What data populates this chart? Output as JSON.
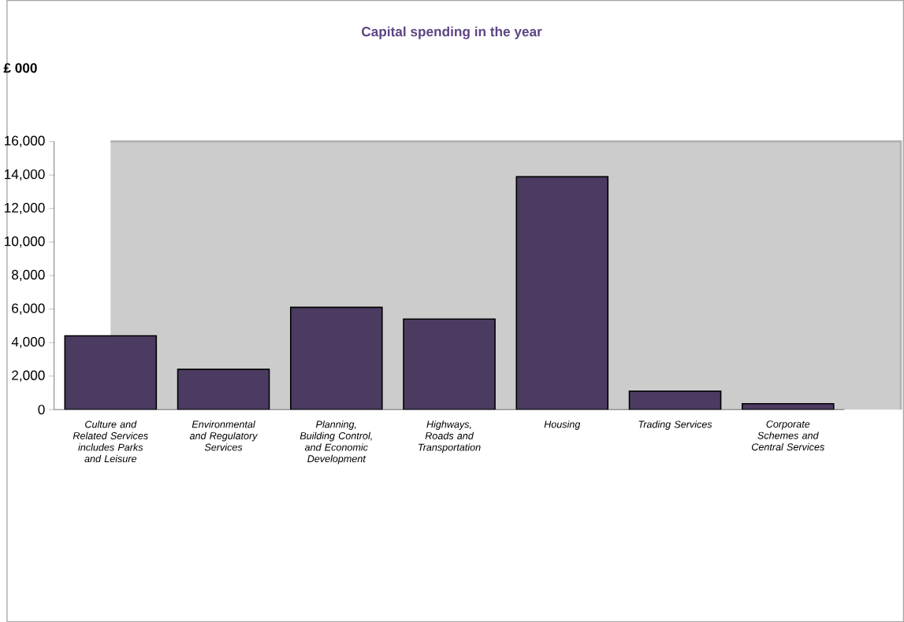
{
  "chart_data": {
    "type": "bar",
    "title": "Capital spending in the year",
    "ylabel": "£ 000",
    "categories": [
      "Culture and Related Services includes Parks and Leisure",
      "Environmental and Regulatory Services",
      "Planning, Building Control, and Economic Development",
      "Highways, Roads and Transportation",
      "Housing",
      "Trading Services",
      "Corporate Schemes and Central Services"
    ],
    "values": [
      4400,
      2400,
      6100,
      5400,
      13900,
      1100,
      350
    ],
    "color": "#4b3b61",
    "ylim": [
      0,
      16000
    ],
    "yticks": [
      {
        "value": 0,
        "label": "0"
      },
      {
        "value": 2000,
        "label": "2,000"
      },
      {
        "value": 4000,
        "label": "4,000"
      },
      {
        "value": 6000,
        "label": "6,000"
      },
      {
        "value": 8000,
        "label": "8,000"
      },
      {
        "value": 10000,
        "label": "10,000"
      },
      {
        "value": 12000,
        "label": "12,000"
      },
      {
        "value": 14000,
        "label": "14,000"
      },
      {
        "value": 16000,
        "label": "16,000"
      }
    ],
    "grid": false
  }
}
